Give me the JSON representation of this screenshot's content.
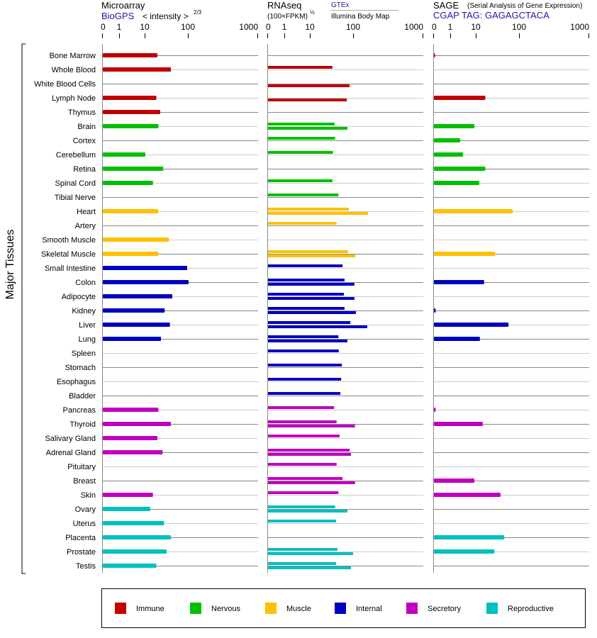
{
  "chart_data": {
    "type": "bar",
    "ylabel": "Major Tissues",
    "categories": [
      "Bone Marrow",
      "Whole Blood",
      "White Blood Cells",
      "Lymph Node",
      "Thymus",
      "Brain",
      "Cortex",
      "Cerebellum",
      "Retina",
      "Spinal Cord",
      "Tibial Nerve",
      "Heart",
      "Artery",
      "Smooth Muscle",
      "Skeletal Muscle",
      "Small Intestine",
      "Colon",
      "Adipocyte",
      "Kidney",
      "Liver",
      "Lung",
      "Spleen",
      "Stomach",
      "Esophagus",
      "Bladder",
      "Pancreas",
      "Thyroid",
      "Salivary Gland",
      "Adrenal Gland",
      "Pituitary",
      "Breast",
      "Skin",
      "Ovary",
      "Uterus",
      "Placenta",
      "Prostate",
      "Testis"
    ],
    "category_groups": [
      "Immune",
      "Immune",
      "Immune",
      "Immune",
      "Immune",
      "Nervous",
      "Nervous",
      "Nervous",
      "Nervous",
      "Nervous",
      "Nervous",
      "Muscle",
      "Muscle",
      "Muscle",
      "Muscle",
      "Internal",
      "Internal",
      "Internal",
      "Internal",
      "Internal",
      "Internal",
      "Internal",
      "Internal",
      "Internal",
      "Internal",
      "Secretory",
      "Secretory",
      "Secretory",
      "Secretory",
      "Secretory",
      "Secretory",
      "Secretory",
      "Reproductive",
      "Reproductive",
      "Reproductive",
      "Reproductive",
      "Reproductive"
    ],
    "legend": [
      {
        "name": "Immune",
        "color": "#c00000"
      },
      {
        "name": "Nervous",
        "color": "#00c000"
      },
      {
        "name": "Muscle",
        "color": "#ffc000"
      },
      {
        "name": "Internal",
        "color": "#0000c0"
      },
      {
        "name": "Secretory",
        "color": "#c000c0"
      },
      {
        "name": "Reproductive",
        "color": "#00c0c0"
      }
    ],
    "legend_position": "bottom",
    "axis_ticks": [
      "0",
      "1",
      "10",
      "100",
      "1000"
    ],
    "tick_values": [
      0,
      1,
      10,
      100,
      1000
    ],
    "panels": [
      {
        "title": "Microarray",
        "source": "BioGPS",
        "unit": "< intensity >",
        "unit_exp": "2/3",
        "series": [
          {
            "name": "BioGPS",
            "values": [
              19,
              39,
              null,
              18,
              22,
              20,
              null,
              10,
              26,
              15,
              null,
              20,
              null,
              35,
              20,
              93,
              100,
              42,
              28,
              37,
              23,
              null,
              null,
              null,
              null,
              20,
              39,
              19,
              25,
              null,
              null,
              15,
              13,
              27,
              39,
              31,
              18
            ]
          }
        ]
      },
      {
        "title": "RNAseq",
        "unit": "(100×FPKM)",
        "unit_exp": "½",
        "series": [
          {
            "name": "GTEx",
            "values": [
              null,
              32,
              null,
              null,
              null,
              36,
              37,
              33,
              null,
              32,
              44,
              77,
              40,
              null,
              74,
              55,
              61,
              59,
              61,
              83,
              44,
              45,
              53,
              51,
              49,
              35,
              40,
              47,
              80,
              40,
              55,
              44,
              37,
              39,
              null,
              42,
              39
            ]
          },
          {
            "name": "Illumina Body Map",
            "values": [
              null,
              null,
              80,
              69,
              null,
              71,
              null,
              null,
              null,
              null,
              null,
              160,
              null,
              null,
              105,
              null,
              102,
              102,
              107,
              156,
              71,
              null,
              null,
              null,
              null,
              null,
              104,
              null,
              86,
              null,
              104,
              null,
              71,
              null,
              null,
              96,
              86
            ]
          }
        ]
      },
      {
        "title": "SAGE",
        "subtitle": "(Serial Analysis of Gene Expression)",
        "source": "CGAP TAG: GAGAGCTACA",
        "series": [
          {
            "name": "SAGE",
            "values": [
              0.05,
              null,
              null,
              16,
              null,
              8.3,
              2.3,
              3.0,
              16,
              11.6,
              null,
              69,
              null,
              null,
              27,
              null,
              15,
              null,
              0.1,
              55,
              12,
              null,
              null,
              null,
              null,
              0.1,
              14,
              null,
              null,
              null,
              8.3,
              36,
              null,
              null,
              44,
              26,
              null
            ]
          }
        ]
      }
    ]
  }
}
